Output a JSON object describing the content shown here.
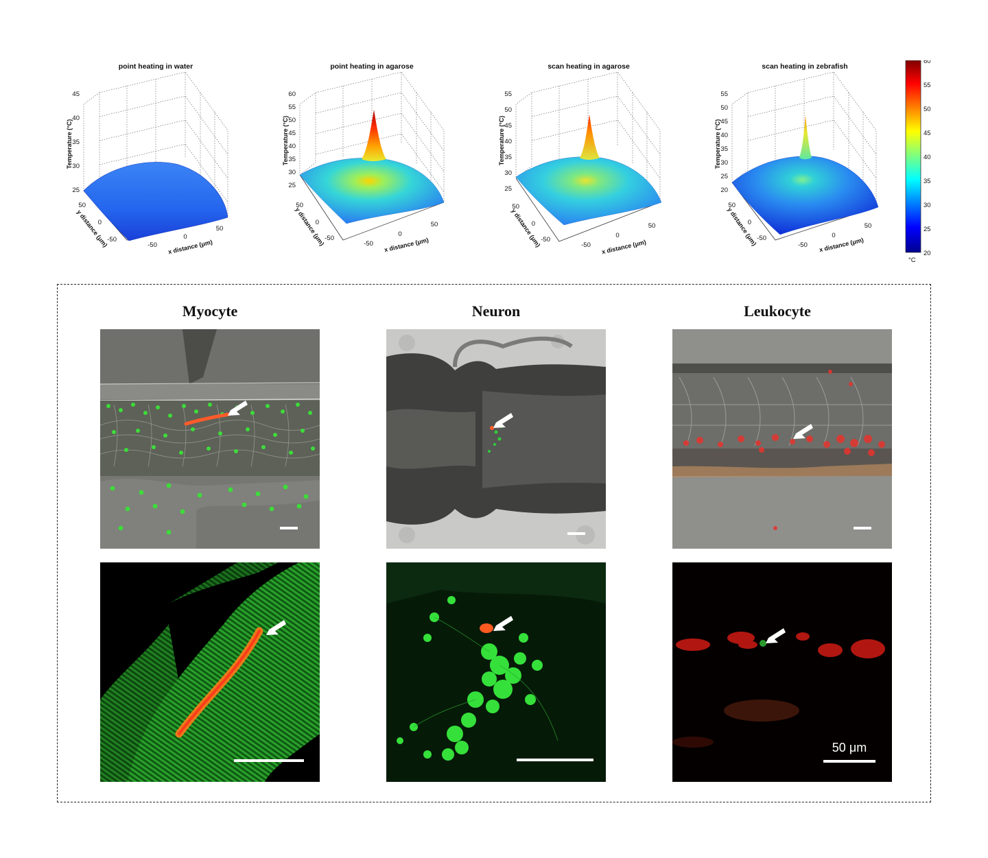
{
  "plots": [
    {
      "title": "point heating in water",
      "z_ticks": [
        "45",
        "40",
        "35",
        "30",
        "25"
      ],
      "y_ticks": [
        "50",
        "0",
        "-50"
      ],
      "x_ticks": [
        "-50",
        "0",
        "50"
      ],
      "zlabel": "Temperature (°C)",
      "ylabel": "y distance (μm)",
      "xlabel": "x distance (μm)",
      "surface": "flat"
    },
    {
      "title": "point heating in agarose",
      "z_ticks": [
        "60",
        "55",
        "50",
        "45",
        "40",
        "35",
        "30",
        "25"
      ],
      "y_ticks": [
        "50",
        "0",
        "-50"
      ],
      "x_ticks": [
        "-50",
        "0",
        "50"
      ],
      "zlabel": "Temperature (°C)",
      "ylabel": "y distance (μm)",
      "xlabel": "x distance (μm)",
      "surface": "peak"
    },
    {
      "title": "scan heating in agarose",
      "z_ticks": [
        "55",
        "50",
        "45",
        "40",
        "35",
        "30",
        "25"
      ],
      "y_ticks": [
        "50",
        "0",
        "-50"
      ],
      "x_ticks": [
        "-50",
        "0",
        "50"
      ],
      "zlabel": "Temperature (°C)",
      "ylabel": "y distance (μm)",
      "xlabel": "x distance (μm)",
      "surface": "peak"
    },
    {
      "title": "scan heating in zebrafish",
      "z_ticks": [
        "55",
        "50",
        "45",
        "40",
        "35",
        "30",
        "25",
        "20"
      ],
      "y_ticks": [
        "50",
        "0",
        "-50"
      ],
      "x_ticks": [
        "-50",
        "0",
        "50"
      ],
      "zlabel": "Temperature (°C)",
      "ylabel": "y distance (μm)",
      "xlabel": "x distance (μm)",
      "surface": "peak"
    }
  ],
  "colorbar": {
    "ticks": [
      "60",
      "55",
      "50",
      "45",
      "40",
      "35",
      "30",
      "25",
      "20"
    ],
    "unit": "°C",
    "colors": [
      "#8b0000",
      "#ff0000",
      "#ffa500",
      "#ffff00",
      "#7fff7f",
      "#00ffff",
      "#0080ff",
      "#0000ff",
      "#00008b"
    ]
  },
  "cells": [
    {
      "title": "Myocyte"
    },
    {
      "title": "Neuron"
    },
    {
      "title": "Leukocyte"
    }
  ],
  "scalebar_label": "50 μm"
}
